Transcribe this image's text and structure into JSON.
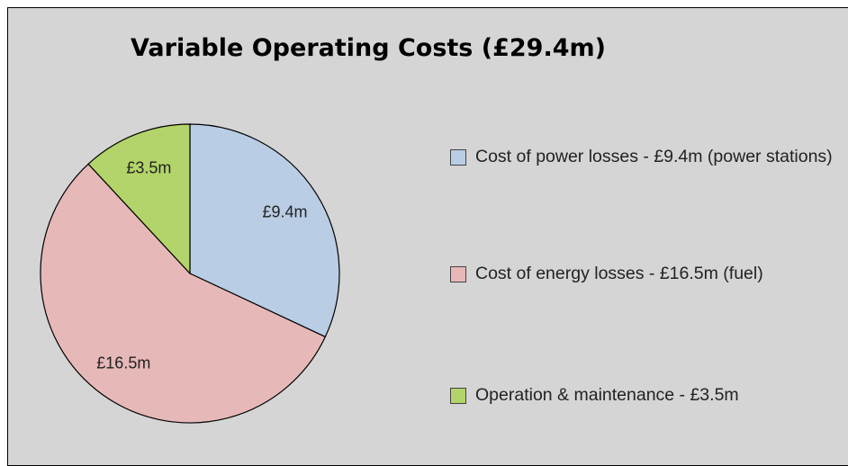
{
  "chart_data": {
    "type": "pie",
    "title": "Variable Operating Costs (£29.4m)",
    "categories": [
      "Cost of power losses - £9.4m (power stations)",
      "Cost of energy losses - £16.5m (fuel)",
      "Operation & maintenance - £3.5m"
    ],
    "values": [
      9.4,
      16.5,
      3.5
    ],
    "value_labels": [
      "£9.4m",
      "£16.5m",
      "£3.5m"
    ],
    "colors": [
      "#b9cde5",
      "#e6b9b8",
      "#b3d46a"
    ],
    "legend": "right"
  }
}
